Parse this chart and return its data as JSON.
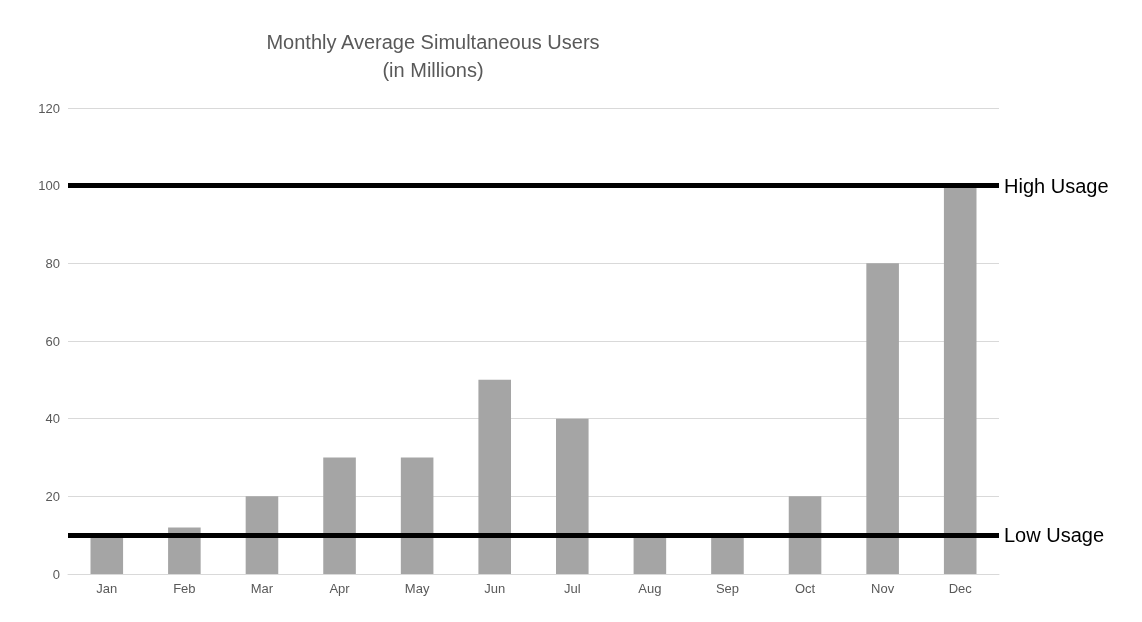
{
  "chart_data": {
    "type": "bar",
    "title": "Monthly Average Simultaneous Users\n(in Millions)",
    "categories": [
      "Jan",
      "Feb",
      "Mar",
      "Apr",
      "May",
      "Jun",
      "Jul",
      "Aug",
      "Sep",
      "Oct",
      "Nov",
      "Dec"
    ],
    "values": [
      10,
      12,
      20,
      30,
      30,
      50,
      40,
      10,
      10,
      20,
      80,
      100
    ],
    "color": "#a5a5a5",
    "ylim": [
      0,
      120
    ],
    "yticks": [
      0,
      20,
      40,
      60,
      80,
      100,
      120
    ],
    "grid": "y",
    "ref_lines": [
      {
        "axis": "y",
        "value": 100,
        "label": "High Usage",
        "color": "#000000",
        "line_style": "solid"
      },
      {
        "axis": "y",
        "value": 10,
        "label": "Low Usage",
        "color": "#000000",
        "line_style": "solid"
      }
    ]
  }
}
